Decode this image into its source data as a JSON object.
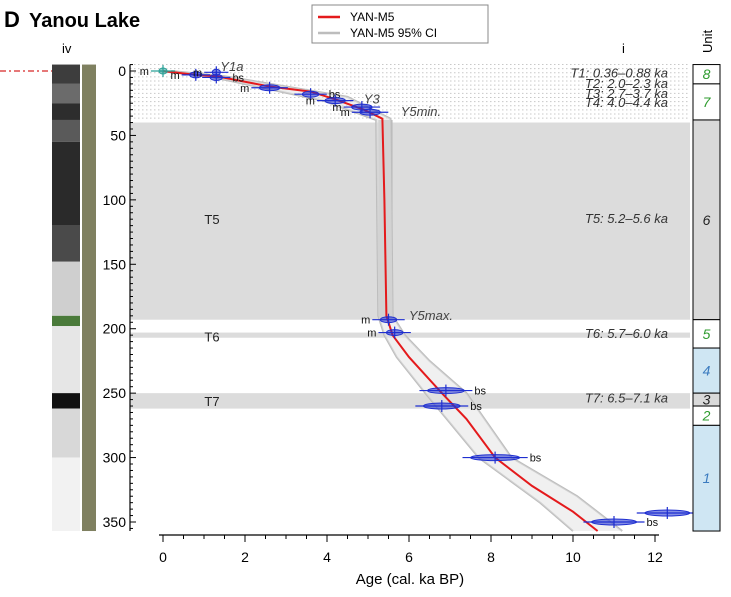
{
  "panel": {
    "letter": "D",
    "title": "Yanou Lake"
  },
  "column_labels": {
    "left": "iv",
    "right": "i",
    "unit": "Unit"
  },
  "legend": {
    "entries": [
      {
        "label": "YAN-M5",
        "color": "#e41a1c"
      },
      {
        "label": "YAN-M5 95% CI",
        "color": "#bdbdbd"
      }
    ]
  },
  "colors": {
    "model": "#e41a1c",
    "ci": "#bdbdbd",
    "dates": "#1f2fd0",
    "band": "#dcdcdc",
    "unit_green": "#2e9b2e",
    "unit_blue": "#3b7bbf",
    "unit_blue_fill": "#cfe6f3",
    "unit_grey_fill": "#d9d9d9"
  },
  "tephra_names": [
    {
      "text": "Y1a",
      "age": 1.3,
      "depth": -3
    },
    {
      "text": "Y3",
      "age": 4.8,
      "depth": 22
    },
    {
      "text": "Y5min.",
      "age": 5.7,
      "depth": 32
    },
    {
      "text": "Y5max.",
      "age": 5.9,
      "depth": 190
    }
  ],
  "interval_labels": [
    {
      "text": "T1: 0.36–0.88 ka",
      "depth": 2
    },
    {
      "text": "T2: 2.0–2.3 ka",
      "depth": 10
    },
    {
      "text": "T3: 2.7–3.7 ka",
      "depth": 18
    },
    {
      "text": "T4: 4.0–4.4 ka",
      "depth": 25
    },
    {
      "text": "T5: 5.2–5.6 ka",
      "depth": 115
    },
    {
      "text": "T6: 5.7–6.0 ka",
      "depth": 204
    },
    {
      "text": "T7: 6.5–7.1 ka",
      "depth": 254
    }
  ],
  "band_labels": [
    {
      "text": "T5",
      "depth": 115
    },
    {
      "text": "T6",
      "depth": 206
    },
    {
      "text": "T7",
      "depth": 256
    }
  ],
  "units": [
    {
      "label": "8",
      "top": -5,
      "bottom": 10,
      "style": "green"
    },
    {
      "label": "7",
      "top": 10,
      "bottom": 38,
      "style": "green"
    },
    {
      "label": "6",
      "top": 38,
      "bottom": 193,
      "style": "grey"
    },
    {
      "label": "5",
      "top": 193,
      "bottom": 215,
      "style": "green"
    },
    {
      "label": "4",
      "top": 215,
      "bottom": 250,
      "style": "blue"
    },
    {
      "label": "3",
      "top": 250,
      "bottom": 260,
      "style": "grey"
    },
    {
      "label": "2",
      "top": 260,
      "bottom": 275,
      "style": "green"
    },
    {
      "label": "1",
      "top": 275,
      "bottom": 357,
      "style": "blue"
    }
  ],
  "chart_data": {
    "type": "line",
    "xlabel": "Age (cal. ka BP)",
    "ylabel": "",
    "xlim": [
      0,
      12
    ],
    "ylim": [
      -5,
      357
    ],
    "x_ticks": [
      0,
      2,
      4,
      6,
      8,
      10,
      12
    ],
    "y_ticks": [
      0,
      50,
      100,
      150,
      200,
      250,
      300,
      350
    ],
    "series": [
      {
        "name": "YAN-M5",
        "points": [
          [
            0,
            0
          ],
          [
            0.8,
            3
          ],
          [
            1.3,
            4
          ],
          [
            2.6,
            12
          ],
          [
            3.6,
            16
          ],
          [
            4.2,
            22
          ],
          [
            4.9,
            30
          ],
          [
            5.35,
            37
          ],
          [
            5.4,
            100
          ],
          [
            5.45,
            190
          ],
          [
            5.6,
            205
          ],
          [
            6.0,
            222
          ],
          [
            6.8,
            250
          ],
          [
            7.4,
            270
          ],
          [
            8.1,
            300
          ],
          [
            9.0,
            322
          ],
          [
            10.0,
            342
          ],
          [
            10.6,
            357
          ]
        ]
      },
      {
        "name": "YAN-M5 95% CI",
        "upper": [
          [
            0.2,
            0
          ],
          [
            1.5,
            4
          ],
          [
            4.5,
            20
          ],
          [
            5.55,
            37
          ],
          [
            5.6,
            190
          ],
          [
            5.9,
            205
          ],
          [
            6.5,
            225
          ],
          [
            7.4,
            250
          ],
          [
            8.5,
            300
          ],
          [
            10.1,
            330
          ],
          [
            11.2,
            357
          ]
        ],
        "lower": [
          [
            -0.1,
            0
          ],
          [
            1.1,
            4
          ],
          [
            3.9,
            23
          ],
          [
            5.2,
            38
          ],
          [
            5.25,
            190
          ],
          [
            5.4,
            205
          ],
          [
            5.7,
            222
          ],
          [
            6.4,
            250
          ],
          [
            7.7,
            300
          ],
          [
            9.2,
            335
          ],
          [
            10.0,
            357
          ]
        ]
      }
    ],
    "dates": [
      {
        "label": "m",
        "age": 0,
        "depth": 0,
        "halfwidth": 0.1,
        "color": "teal"
      },
      {
        "label": "m",
        "age": 0.8,
        "depth": 3,
        "halfwidth": 0.15
      },
      {
        "label": "m",
        "age": 1.3,
        "depth": 1,
        "halfwidth": 0.1
      },
      {
        "label": "bs",
        "age": 1.3,
        "depth": 5,
        "halfwidth": 0.15
      },
      {
        "label": "m",
        "age": 2.6,
        "depth": 13,
        "halfwidth": 0.25
      },
      {
        "label": "bs",
        "age": 3.6,
        "depth": 18,
        "halfwidth": 0.2
      },
      {
        "label": "m",
        "age": 4.2,
        "depth": 23,
        "halfwidth": 0.25
      },
      {
        "label": "m",
        "age": 4.85,
        "depth": 28,
        "halfwidth": 0.25
      },
      {
        "label": "m",
        "age": 5.05,
        "depth": 32,
        "halfwidth": 0.25
      },
      {
        "label": "m",
        "age": 5.5,
        "depth": 193,
        "halfwidth": 0.2
      },
      {
        "label": "m",
        "age": 5.65,
        "depth": 203,
        "halfwidth": 0.2
      },
      {
        "label": "bs",
        "age": 6.9,
        "depth": 248,
        "halfwidth": 0.45
      },
      {
        "label": "bs",
        "age": 6.8,
        "depth": 260,
        "halfwidth": 0.45
      },
      {
        "label": "bs",
        "age": 8.1,
        "depth": 300,
        "halfwidth": 0.6
      },
      {
        "label": "bs",
        "age": 12.3,
        "depth": 343,
        "halfwidth": 0.55
      },
      {
        "label": "bs",
        "age": 11.0,
        "depth": 350,
        "halfwidth": 0.55
      }
    ],
    "bands": [
      {
        "name": "T1-T4",
        "top": -5,
        "bottom": 38,
        "style": "dotted"
      },
      {
        "name": "T5",
        "top": 40,
        "bottom": 193
      },
      {
        "name": "T6",
        "top": 203,
        "bottom": 207
      },
      {
        "name": "T7",
        "top": 250,
        "bottom": 262
      }
    ]
  }
}
